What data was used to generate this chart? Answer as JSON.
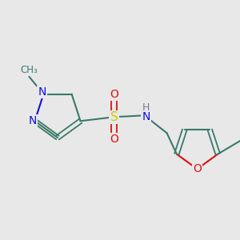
{
  "bg_color": "#e8e8e8",
  "bond_color": "#3a7a6a",
  "N_color": "#1010dd",
  "O_color": "#dd1010",
  "S_color": "#cccc00",
  "H_color": "#708090",
  "line_width": 1.5,
  "font_size": 10,
  "fig_size": [
    3.0,
    3.0
  ],
  "dpi": 100,
  "xlim": [
    0,
    300
  ],
  "ylim": [
    0,
    300
  ]
}
